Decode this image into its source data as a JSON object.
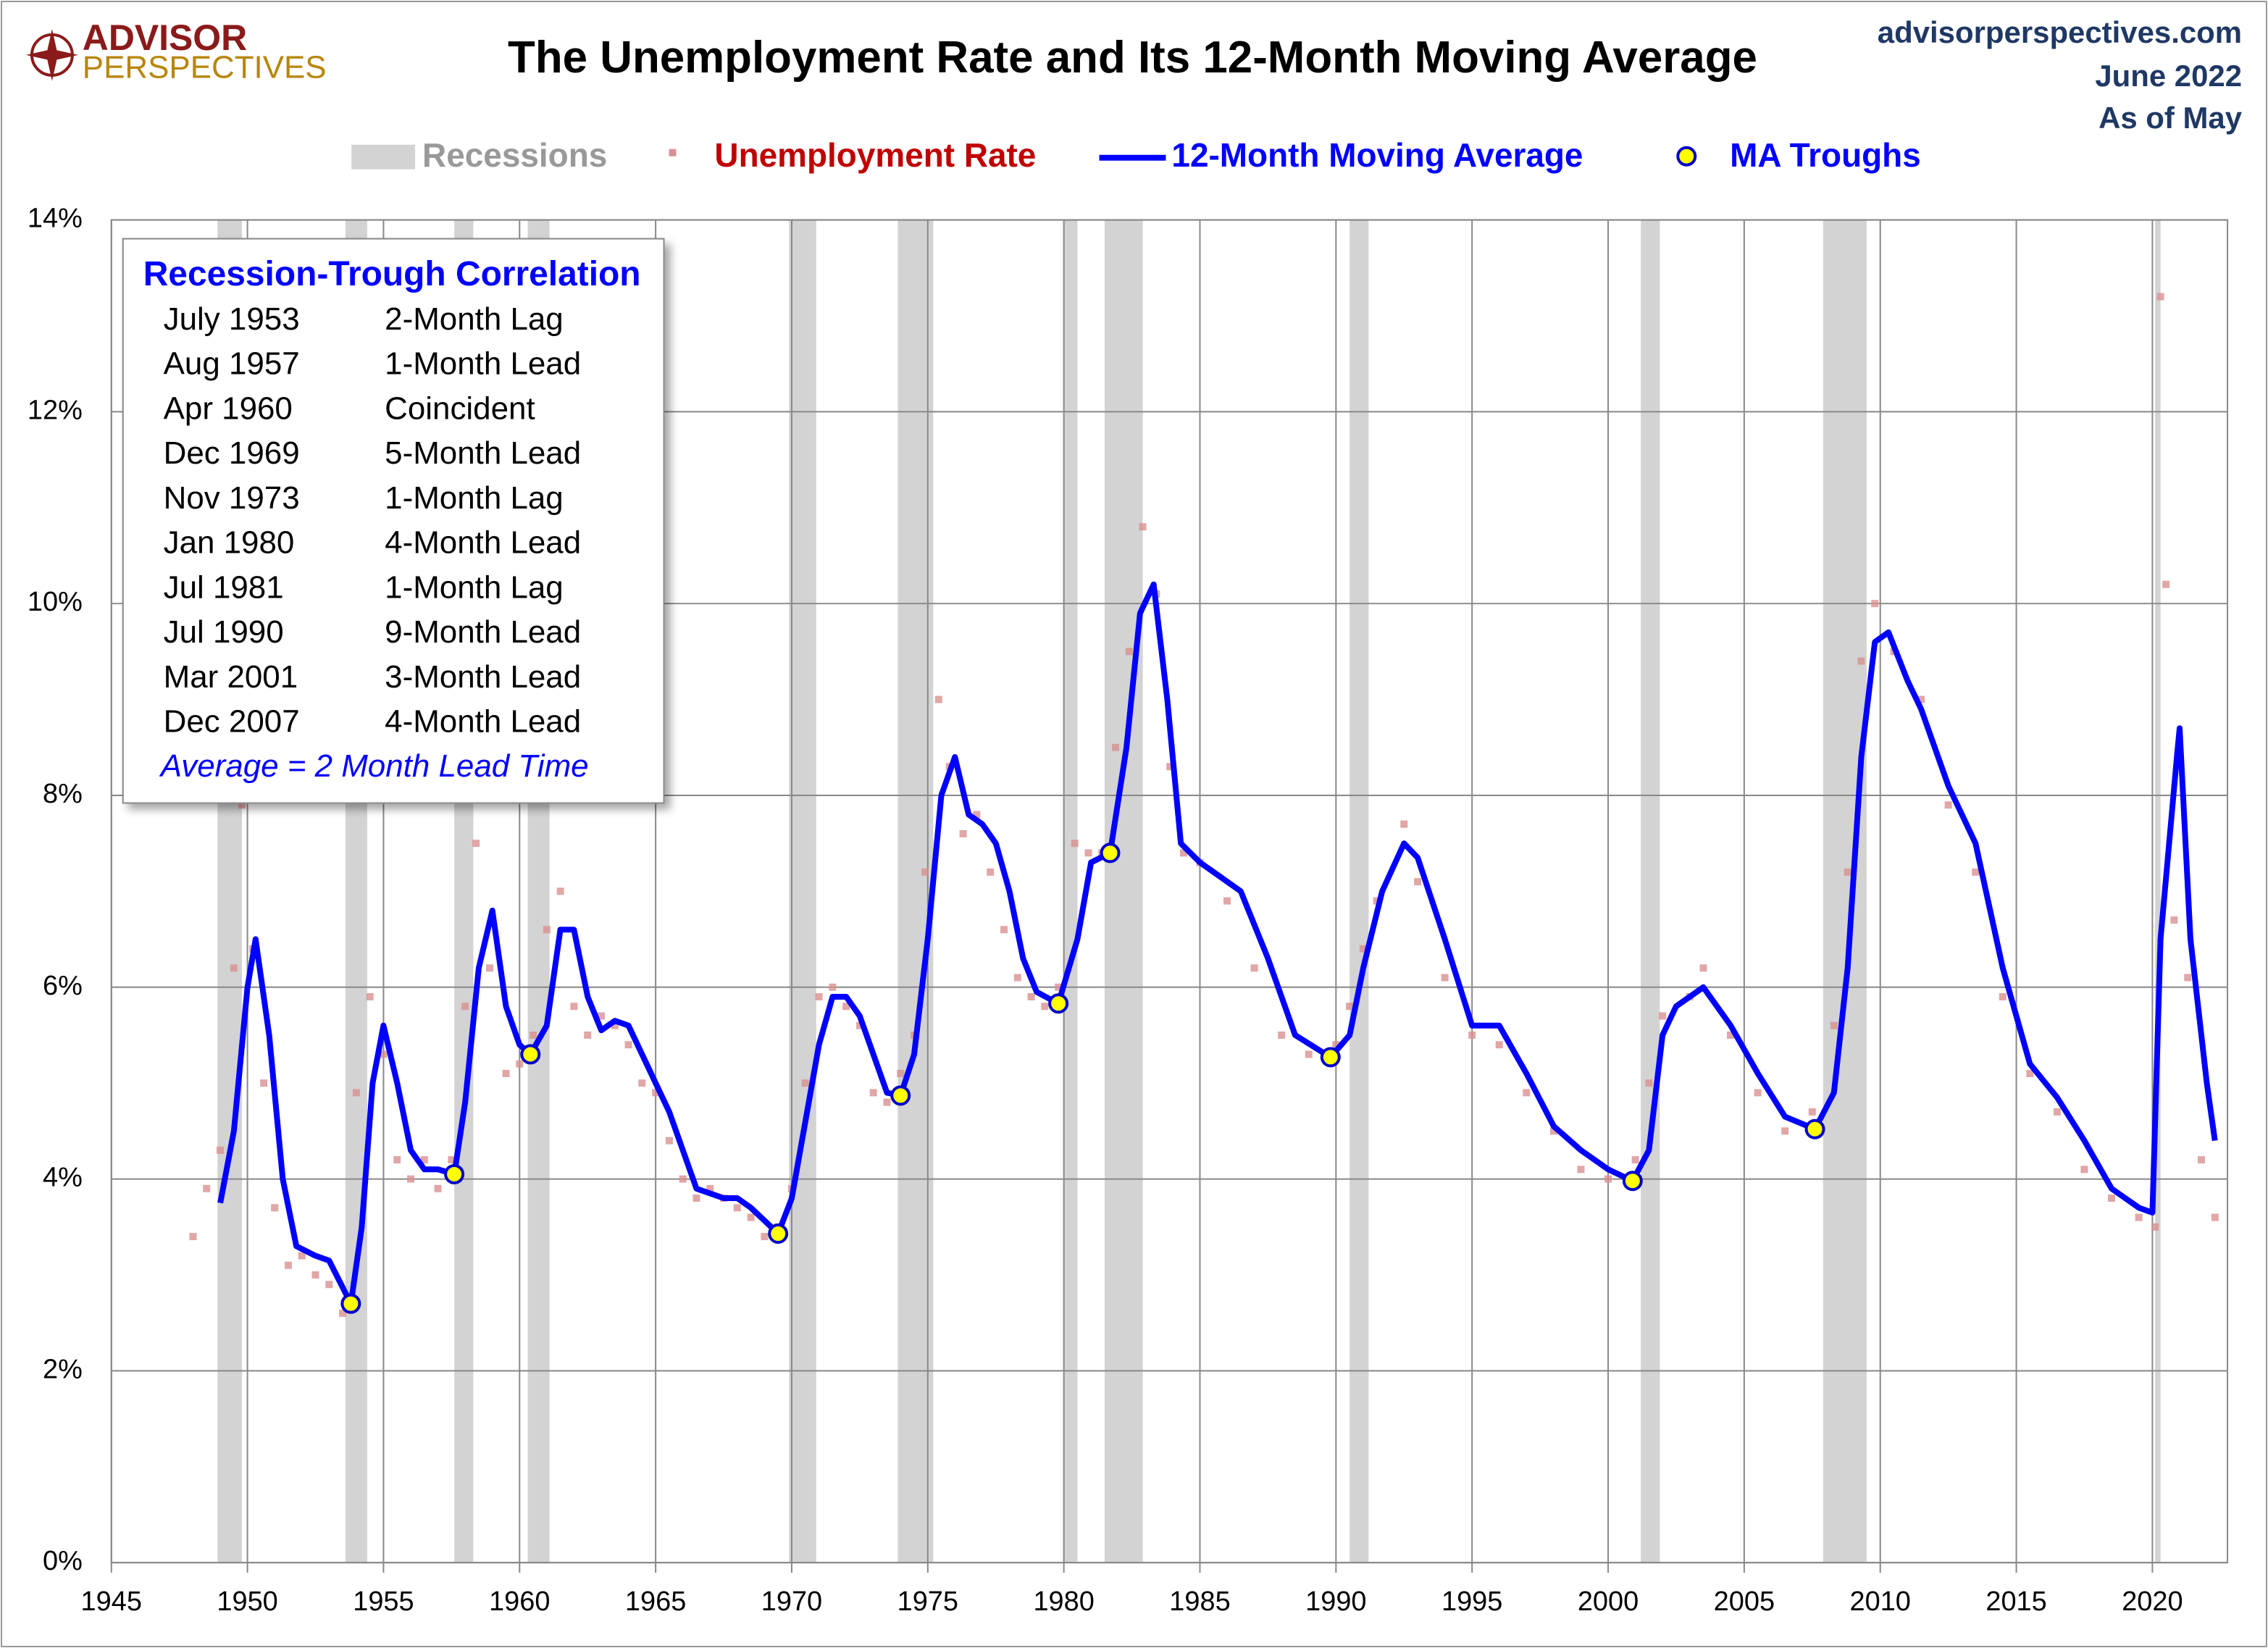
{
  "chart_data": {
    "type": "line",
    "logo": [
      "ADVISOR",
      "PERSPECTIVES"
    ],
    "title": "The Unemployment Rate and Its 12-Month Moving Average",
    "source": [
      "advisorperspectives.com",
      "June 2022",
      "As of May"
    ],
    "xlim": [
      1945,
      2022.76
    ],
    "xticks": [
      1945,
      1950,
      1955,
      1960,
      1965,
      1970,
      1975,
      1980,
      1985,
      1990,
      1995,
      2000,
      2005,
      2010,
      2015,
      2020
    ],
    "ylim": [
      0,
      14
    ],
    "yticks": [
      {
        "value": 0,
        "label": "0%"
      },
      {
        "value": 2,
        "label": "2%"
      },
      {
        "value": 4,
        "label": "4%"
      },
      {
        "value": 6,
        "label": "6%"
      },
      {
        "value": 8,
        "label": "8%"
      },
      {
        "value": 10,
        "label": "10%"
      },
      {
        "value": 12,
        "label": "12%"
      },
      {
        "value": 14,
        "label": "14%"
      }
    ],
    "grid": true,
    "recessions": {
      "name": "Recessions",
      "color": "#d3d3d3",
      "periods": [
        [
          1948.9,
          1949.8
        ],
        [
          1953.6,
          1954.4
        ],
        [
          1957.6,
          1958.3
        ],
        [
          1960.3,
          1961.1
        ],
        [
          1969.9,
          1970.9
        ],
        [
          1973.9,
          1975.2
        ],
        [
          1980.0,
          1980.5
        ],
        [
          1981.5,
          1982.9
        ],
        [
          1990.5,
          1991.2
        ],
        [
          2001.2,
          2001.9
        ],
        [
          2007.9,
          2009.5
        ],
        [
          2020.1,
          2020.3
        ]
      ]
    },
    "series": [
      {
        "name": "Unemployment Rate",
        "color": "#d99090",
        "text_color": "#c00000",
        "kind": "scatter",
        "x": [
          1948.0,
          1948.5,
          1949.0,
          1949.5,
          1949.8,
          1950.2,
          1950.6,
          1951.0,
          1951.5,
          1952.0,
          1952.5,
          1953.0,
          1953.5,
          1954.0,
          1954.5,
          1955.0,
          1955.5,
          1956.0,
          1956.5,
          1957.0,
          1957.5,
          1958.0,
          1958.4,
          1958.9,
          1959.5,
          1960.0,
          1960.5,
          1961.0,
          1961.5,
          1962.0,
          1962.5,
          1963.0,
          1963.5,
          1964.0,
          1964.5,
          1965.0,
          1965.5,
          1966.0,
          1966.5,
          1967.0,
          1967.5,
          1968.0,
          1968.5,
          1969.0,
          1969.5,
          1970.0,
          1970.5,
          1971.0,
          1971.5,
          1972.0,
          1972.5,
          1973.0,
          1973.5,
          1974.0,
          1974.5,
          1974.9,
          1975.4,
          1975.8,
          1976.3,
          1976.8,
          1977.3,
          1977.8,
          1978.3,
          1978.8,
          1979.3,
          1979.8,
          1980.4,
          1980.9,
          1981.4,
          1981.9,
          1982.4,
          1982.9,
          1983.4,
          1983.9,
          1984.4,
          1985.0,
          1986.0,
          1987.0,
          1988.0,
          1989.0,
          1990.0,
          1990.5,
          1991.0,
          1991.5,
          1992.5,
          1993.0,
          1994.0,
          1995.0,
          1996.0,
          1997.0,
          1998.0,
          1999.0,
          2000.0,
          2001.0,
          2001.5,
          2002.0,
          2003.0,
          2003.5,
          2004.5,
          2005.5,
          2006.5,
          2007.5,
          2008.3,
          2008.8,
          2009.3,
          2009.8,
          2010.5,
          2011.5,
          2012.5,
          2013.5,
          2014.5,
          2015.5,
          2016.5,
          2017.5,
          2018.5,
          2019.5,
          2020.1,
          2020.3,
          2020.5,
          2020.8,
          2021.3,
          2021.8,
          2022.3
        ],
        "values": [
          3.4,
          3.9,
          4.3,
          6.2,
          7.9,
          6.4,
          5.0,
          3.7,
          3.1,
          3.2,
          3.0,
          2.9,
          2.6,
          4.9,
          5.9,
          5.3,
          4.2,
          4.0,
          4.2,
          3.9,
          4.2,
          5.8,
          7.5,
          6.2,
          5.1,
          5.2,
          5.5,
          6.6,
          7.0,
          5.8,
          5.5,
          5.7,
          5.6,
          5.4,
          5.0,
          4.9,
          4.4,
          4.0,
          3.8,
          3.9,
          3.8,
          3.7,
          3.6,
          3.4,
          3.5,
          3.9,
          5.0,
          5.9,
          6.0,
          5.8,
          5.6,
          4.9,
          4.8,
          5.1,
          5.5,
          7.2,
          9.0,
          8.3,
          7.6,
          7.8,
          7.2,
          6.6,
          6.1,
          5.9,
          5.8,
          6.0,
          7.5,
          7.4,
          7.4,
          8.5,
          9.5,
          10.8,
          10.1,
          8.3,
          7.4,
          7.3,
          6.9,
          6.2,
          5.5,
          5.3,
          5.4,
          5.8,
          6.4,
          6.9,
          7.7,
          7.1,
          6.1,
          5.5,
          5.4,
          4.9,
          4.5,
          4.1,
          4.0,
          4.2,
          5.0,
          5.7,
          5.9,
          6.2,
          5.5,
          4.9,
          4.5,
          4.7,
          5.6,
          7.2,
          9.4,
          10.0,
          9.5,
          9.0,
          7.9,
          7.2,
          5.9,
          5.1,
          4.7,
          4.1,
          3.8,
          3.6,
          3.5,
          13.2,
          10.2,
          6.7,
          6.1,
          4.2,
          3.6
        ]
      },
      {
        "name": "12-Month Moving Average",
        "color": "#0000ff",
        "text_color": "#0000ff",
        "kind": "line",
        "x": [
          1949.0,
          1949.5,
          1950.0,
          1950.3,
          1950.8,
          1951.3,
          1951.8,
          1952.5,
          1953.0,
          1953.8,
          1954.2,
          1954.6,
          1955.0,
          1955.5,
          1956.0,
          1956.5,
          1957.0,
          1957.6,
          1958.0,
          1958.5,
          1959.0,
          1959.5,
          1960.0,
          1960.4,
          1961.0,
          1961.5,
          1962.0,
          1962.5,
          1963.0,
          1963.5,
          1964.0,
          1964.5,
          1965.5,
          1966.5,
          1967.5,
          1968.0,
          1968.5,
          1969.5,
          1970.0,
          1970.5,
          1971.0,
          1971.5,
          1972.0,
          1972.5,
          1973.0,
          1973.5,
          1974.0,
          1974.5,
          1975.0,
          1975.5,
          1976.0,
          1976.5,
          1977.0,
          1977.5,
          1978.0,
          1978.5,
          1979.0,
          1979.8,
          1980.5,
          1981.0,
          1981.7,
          1982.3,
          1982.8,
          1983.3,
          1983.8,
          1984.3,
          1985.0,
          1985.5,
          1986.5,
          1987.5,
          1988.5,
          1989.8,
          1990.5,
          1991.0,
          1991.7,
          1992.5,
          1993.0,
          1994.0,
          1995.0,
          1996.0,
          1997.0,
          1998.0,
          1999.0,
          2000.0,
          2000.9,
          2001.5,
          2002.0,
          2002.5,
          2003.5,
          2004.5,
          2005.5,
          2006.5,
          2007.6,
          2008.3,
          2008.8,
          2009.3,
          2009.8,
          2010.3,
          2011.0,
          2011.5,
          2012.5,
          2013.5,
          2014.5,
          2015.5,
          2016.5,
          2017.5,
          2018.5,
          2019.5,
          2020.0,
          2020.3,
          2020.9,
          2021.0,
          2021.4,
          2022.0,
          2022.3
        ],
        "values": [
          3.75,
          4.5,
          6.0,
          6.5,
          5.5,
          4.0,
          3.3,
          3.2,
          3.15,
          2.7,
          3.5,
          5.0,
          5.6,
          5.0,
          4.3,
          4.1,
          4.1,
          4.05,
          4.8,
          6.2,
          6.8,
          5.8,
          5.4,
          5.3,
          5.6,
          6.6,
          6.6,
          5.9,
          5.55,
          5.65,
          5.6,
          5.3,
          4.7,
          3.9,
          3.8,
          3.8,
          3.7,
          3.43,
          3.8,
          4.6,
          5.4,
          5.9,
          5.9,
          5.7,
          5.3,
          4.9,
          4.87,
          5.3,
          6.5,
          8.0,
          8.4,
          7.8,
          7.7,
          7.5,
          7.0,
          6.3,
          5.95,
          5.83,
          6.5,
          7.3,
          7.4,
          8.5,
          9.9,
          10.2,
          9.0,
          7.5,
          7.3,
          7.2,
          7.0,
          6.3,
          5.5,
          5.27,
          5.5,
          6.2,
          7.0,
          7.5,
          7.35,
          6.5,
          5.6,
          5.6,
          5.1,
          4.55,
          4.3,
          4.1,
          3.98,
          4.3,
          5.5,
          5.8,
          6.0,
          5.6,
          5.1,
          4.65,
          4.52,
          4.9,
          6.2,
          8.4,
          9.6,
          9.7,
          9.2,
          8.9,
          8.1,
          7.5,
          6.2,
          5.2,
          4.85,
          4.4,
          3.9,
          3.7,
          3.65,
          6.5,
          8.4,
          8.7,
          6.5,
          5.0,
          4.4
        ]
      },
      {
        "name": "MA Troughs",
        "color": "#ffff00",
        "text_color": "#0000ff",
        "kind": "points",
        "x": [
          1953.8,
          1957.6,
          1960.4,
          1969.5,
          1974.0,
          1979.8,
          1981.7,
          1989.8,
          2000.9,
          2007.6
        ],
        "values": [
          2.7,
          4.05,
          5.3,
          3.43,
          4.87,
          5.83,
          7.4,
          5.27,
          3.98,
          4.52
        ]
      }
    ],
    "table": {
      "title": "Recession-Trough Correlation",
      "rows": [
        [
          "July 1953",
          "2-Month Lag"
        ],
        [
          "Aug 1957",
          "1-Month Lead"
        ],
        [
          "Apr 1960",
          "Coincident"
        ],
        [
          "Dec 1969",
          "5-Month Lead"
        ],
        [
          "Nov 1973",
          "1-Month Lag"
        ],
        [
          "Jan 1980",
          "4-Month Lead"
        ],
        [
          "Jul 1981",
          "1-Month Lag"
        ],
        [
          "Jul 1990",
          "9-Month Lead"
        ],
        [
          "Mar 2001",
          "3-Month Lead"
        ],
        [
          "Dec 2007",
          "4-Month Lead"
        ]
      ],
      "note": "Average = 2 Month Lead Time"
    }
  }
}
